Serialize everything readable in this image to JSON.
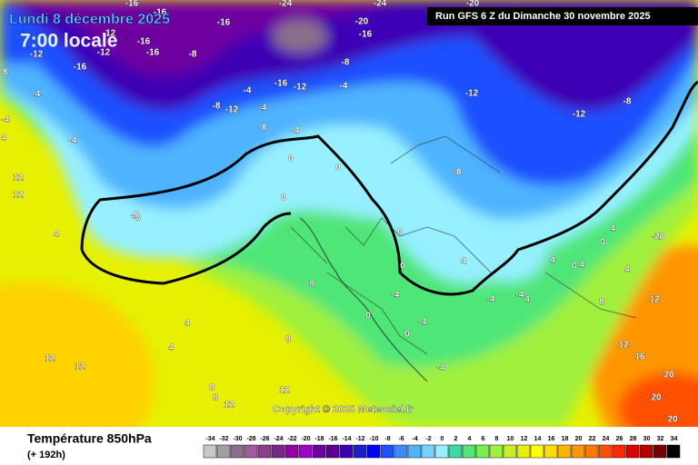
{
  "header": {
    "date": "Lundi 8 décembre 2025",
    "time": "7:00 locale",
    "run": "Run GFS 6 Z du Dimanche 30 novembre 2025"
  },
  "copyright": "Copyright © 2025 Meteociel.fr",
  "footer": {
    "title": "Température 850hPa",
    "lead": "(+ 192h)"
  },
  "legend": {
    "values": [
      -34,
      -32,
      -30,
      -28,
      -26,
      -24,
      -22,
      -20,
      -18,
      -16,
      -14,
      -12,
      -10,
      -8,
      -6,
      -4,
      -2,
      0,
      2,
      4,
      6,
      8,
      10,
      12,
      14,
      16,
      18,
      20,
      22,
      24,
      26,
      28,
      30,
      32,
      34
    ],
    "colors": [
      "#c8c8c8",
      "#a0a0a0",
      "#8c6e8c",
      "#a05aa0",
      "#8c3c8c",
      "#78288c",
      "#9600a0",
      "#a000c8",
      "#6e00a0",
      "#5a0096",
      "#3c00b4",
      "#1e1ec8",
      "#0000ff",
      "#1e50ff",
      "#3c8cff",
      "#50b4ff",
      "#78d2ff",
      "#96f0ff",
      "#3cdca0",
      "#50e678",
      "#78f050",
      "#a0f03c",
      "#c8f028",
      "#e6f000",
      "#ffff00",
      "#ffdc00",
      "#ffb400",
      "#ff9600",
      "#ff7800",
      "#ff5000",
      "#ff2800",
      "#dc0000",
      "#b40000",
      "#780000",
      "#000000"
    ]
  },
  "map_labels": [
    "-16",
    "-16",
    "-16",
    "-12",
    "-16",
    "-12",
    "-16",
    "-20",
    "-24",
    "-20",
    "-16",
    "-24",
    "-16",
    "-4",
    "-8",
    "-12",
    "-4",
    "-8",
    "-4",
    "-8",
    "-16",
    "-12",
    "-4",
    "-8",
    "-12",
    "-8",
    "-12",
    "-4",
    "-4",
    "-4",
    "0",
    "0",
    "0",
    "-8",
    "-8",
    "4",
    "4",
    "4",
    "8",
    "8",
    "8",
    "12",
    "12",
    "12",
    "12",
    "12",
    "4",
    "-4",
    "0",
    "0",
    "-4",
    "-4",
    "0",
    "-4",
    "4",
    "4",
    "4",
    "4",
    "8",
    "12",
    "12",
    "16",
    "20",
    "20",
    "20",
    "4",
    "-8",
    "-12",
    "-20",
    "4",
    "0",
    "0",
    "-4",
    "8",
    "12",
    "0",
    "-8"
  ]
}
